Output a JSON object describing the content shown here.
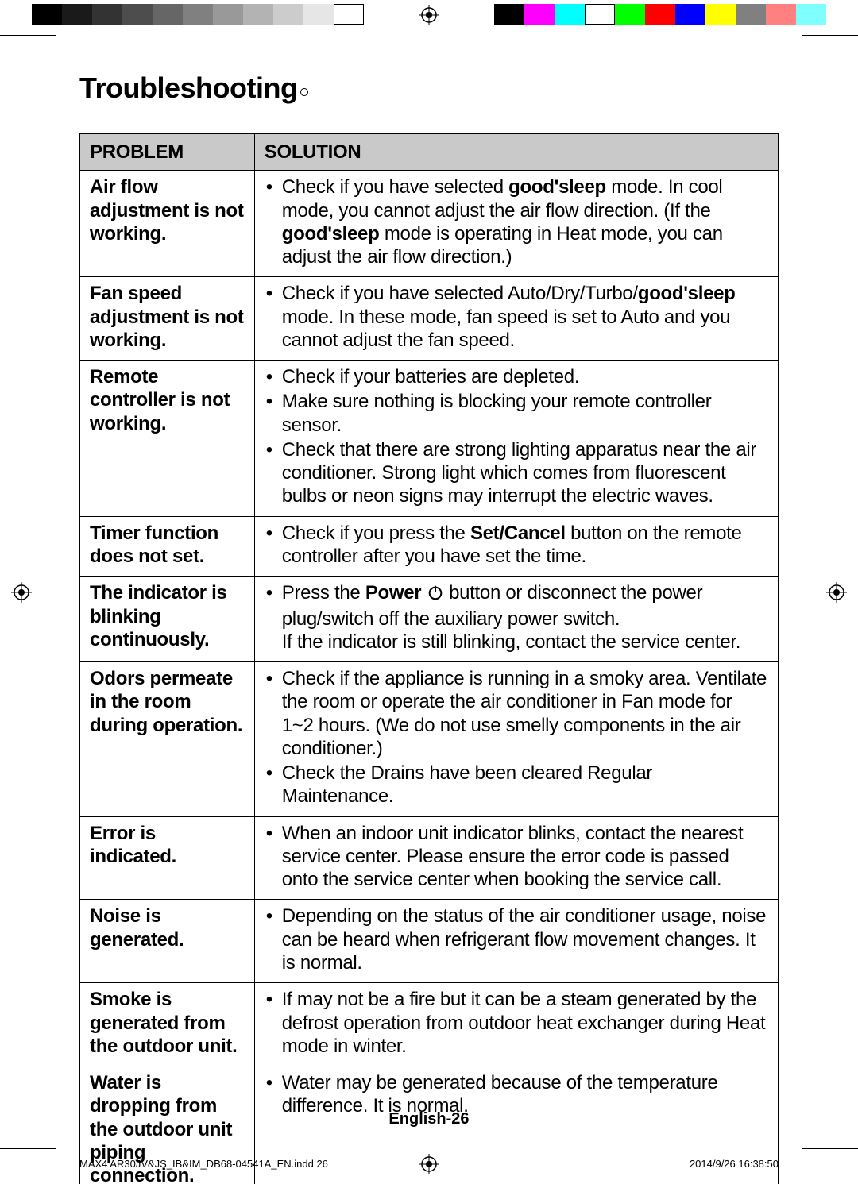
{
  "print": {
    "grayscale_swatches": [
      "#000000",
      "#1a1a1a",
      "#333333",
      "#4d4d4d",
      "#666666",
      "#808080",
      "#999999",
      "#b3b3b3",
      "#cccccc",
      "#e6e6e6",
      "#ffffff"
    ],
    "color_swatches": [
      "#000000",
      "#ff00ff",
      "#00ffff",
      "#ffffff",
      "#00ff00",
      "#ff0000",
      "#0000ff",
      "#ffff00",
      "#808080",
      "#ff8080",
      "#80ffff"
    ]
  },
  "title": "Troubleshooting",
  "table": {
    "headers": {
      "problem": "PROBLEM",
      "solution": "SOLUTION"
    },
    "rows": [
      {
        "problem": "Air flow adjustment is not working.",
        "solutions": [
          [
            {
              "t": "Check if you have selected "
            },
            {
              "t": "good'sleep",
              "b": true
            },
            {
              "t": " mode. In cool mode, you cannot adjust the air flow direction. (If the "
            },
            {
              "t": "good'sleep",
              "b": true
            },
            {
              "t": " mode is operating in Heat mode, you can adjust the air flow direction.)"
            }
          ]
        ]
      },
      {
        "problem": "Fan speed adjustment is not working.",
        "solutions": [
          [
            {
              "t": "Check if you have selected Auto/Dry/Turbo/"
            },
            {
              "t": "good'sleep",
              "b": true
            },
            {
              "t": " mode. In these mode, fan speed is set to Auto and you cannot adjust the fan speed."
            }
          ]
        ]
      },
      {
        "problem": "Remote controller is not working.",
        "solutions": [
          [
            {
              "t": "Check if your batteries are depleted."
            }
          ],
          [
            {
              "t": "Make sure nothing is blocking your remote controller sensor."
            }
          ],
          [
            {
              "t": "Check that there are strong lighting apparatus near the air conditioner. Strong light which comes from fluorescent bulbs or neon signs may interrupt the electric waves."
            }
          ]
        ]
      },
      {
        "problem": "Timer function does not set.",
        "solutions": [
          [
            {
              "t": "Check if you press the "
            },
            {
              "t": "Set/Cancel",
              "b": true
            },
            {
              "t": " button on the remote controller after you have set the time."
            }
          ]
        ]
      },
      {
        "problem": "The indicator is blinking continuously.",
        "solutions": [
          [
            {
              "t": "Press the "
            },
            {
              "t": "Power",
              "b": true
            },
            {
              "t": " "
            },
            {
              "icon": "power"
            },
            {
              "t": " button or disconnect the power plug/switch off the auxiliary power switch.\nIf the indicator is still blinking, contact the service center."
            }
          ]
        ]
      },
      {
        "problem": "Odors permeate in the room during operation.",
        "solutions": [
          [
            {
              "t": "Check if the appliance is running in a smoky area. Ventilate the room or operate the air conditioner in Fan mode for 1~2 hours. (We do not use smelly components in the air conditioner.)"
            }
          ],
          [
            {
              "t": "Check the Drains have been cleared Regular Maintenance."
            }
          ]
        ]
      },
      {
        "problem": "Error is indicated.",
        "solutions": [
          [
            {
              "t": "When an indoor unit indicator blinks, contact the nearest service center. Please ensure the error code is passed onto the service center when booking the service call."
            }
          ]
        ]
      },
      {
        "problem": "Noise is generated.",
        "solutions": [
          [
            {
              "t": "Depending on the status of the air conditioner usage, noise can be heard when refrigerant flow movement changes. It is normal."
            }
          ]
        ]
      },
      {
        "problem": "Smoke is generated from the outdoor unit.",
        "solutions": [
          [
            {
              "t": "If may not be a fire but it can be a steam generated by the defrost operation from outdoor heat exchanger during Heat mode in winter."
            }
          ]
        ]
      },
      {
        "problem": "Water is dropping from the outdoor unit piping connection.",
        "solutions": [
          [
            {
              "t": "Water may be generated because of the temperature difference. It is normal."
            }
          ]
        ]
      }
    ]
  },
  "footer": {
    "page_label": "English-26",
    "file": "MAX4 AR30JV&JS_IB&IM_DB68-04541A_EN.indd   26",
    "timestamp": "2014/9/26   16:38:50"
  }
}
